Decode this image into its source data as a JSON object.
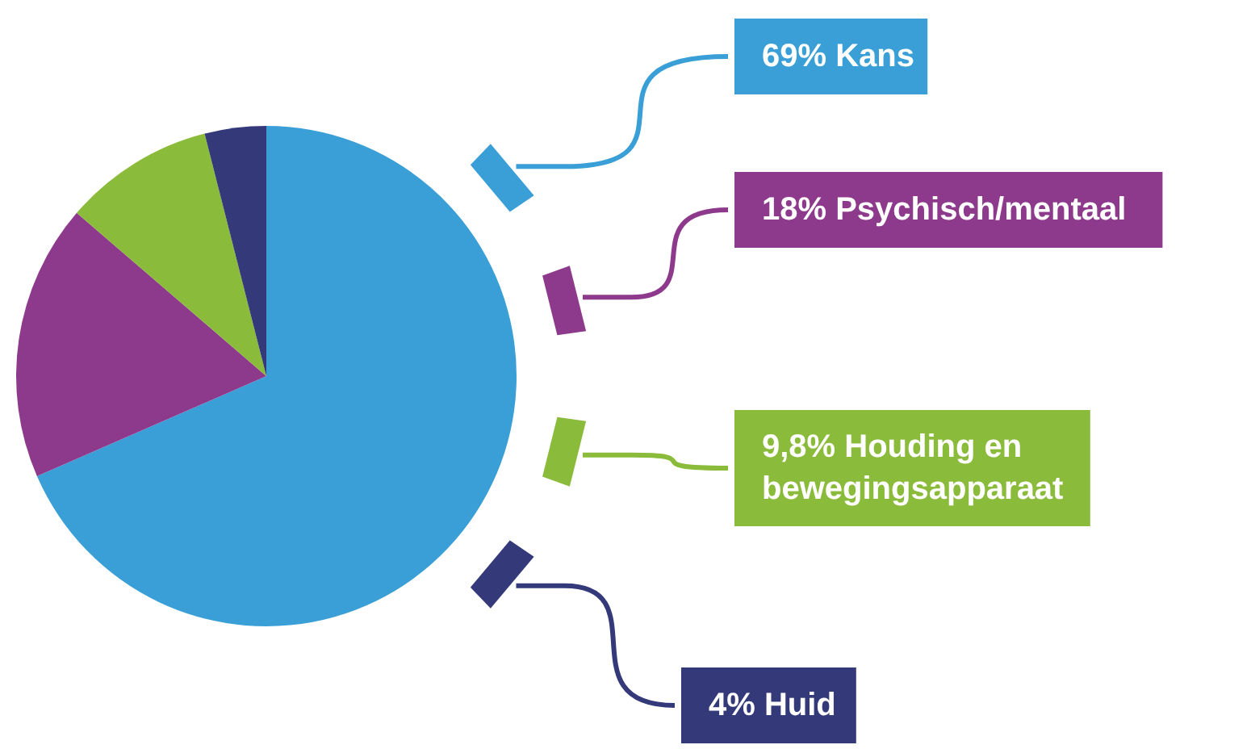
{
  "chart_data": {
    "type": "pie",
    "categories": [
      "Kans",
      "Psychisch/mentaal",
      "Houding en bewegingsapparaat",
      "Huid"
    ],
    "values": [
      69,
      18,
      9.8,
      4
    ],
    "value_labels": [
      "69%",
      "18%",
      "9,8%",
      "4%"
    ],
    "colors": [
      "#3a9fd6",
      "#8e3a8c",
      "#8bbb3a",
      "#34397a"
    ],
    "legend": "right"
  }
}
